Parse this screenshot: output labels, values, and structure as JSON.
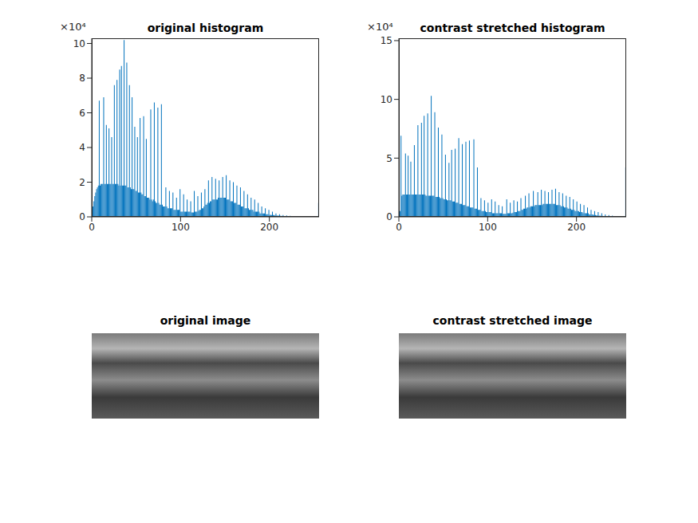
{
  "chart_data": [
    {
      "type": "histogram",
      "title": "original histogram",
      "annotations": [
        "×10⁴"
      ],
      "color": "#0072bd",
      "bins": [
        0,
        1,
        2,
        3,
        4,
        5,
        6,
        7,
        8,
        9,
        10,
        11,
        12,
        13,
        14,
        15,
        16,
        17,
        18,
        19,
        20,
        21,
        22,
        23,
        24,
        25,
        26,
        27,
        28,
        29,
        30,
        31,
        32,
        33,
        34,
        35,
        36,
        37,
        38,
        39,
        40,
        41,
        42,
        43,
        44,
        45,
        46,
        47,
        48,
        49,
        50,
        51,
        52,
        53,
        54,
        55,
        56,
        57,
        58,
        59,
        60,
        61,
        62,
        63,
        64,
        65,
        66,
        67,
        68,
        69,
        70,
        71,
        72,
        73,
        74,
        75,
        76,
        77,
        78,
        79,
        80,
        81,
        82,
        83,
        84,
        85,
        86,
        87,
        88,
        89,
        90,
        91,
        92,
        93,
        94,
        95,
        96,
        97,
        98,
        99,
        100,
        101,
        102,
        103,
        104,
        105,
        106,
        107,
        108,
        109,
        110,
        111,
        112,
        113,
        114,
        115,
        116,
        117,
        118,
        119,
        120,
        121,
        122,
        123,
        124,
        125,
        126,
        127,
        128,
        129,
        130,
        131,
        132,
        133,
        134,
        135,
        136,
        137,
        138,
        139,
        140,
        141,
        142,
        143,
        144,
        145,
        146,
        147,
        148,
        149,
        150,
        151,
        152,
        153,
        154,
        155,
        156,
        157,
        158,
        159,
        160,
        161,
        162,
        163,
        164,
        165,
        166,
        167,
        168,
        169,
        170,
        171,
        172,
        173,
        174,
        175,
        176,
        177,
        178,
        179,
        180,
        181,
        182,
        183,
        184,
        185,
        186,
        187,
        188,
        189,
        190,
        191,
        192,
        193,
        194,
        195,
        196,
        197,
        198,
        199,
        200,
        201,
        202,
        203,
        204,
        205,
        206,
        207,
        208,
        209,
        210,
        211,
        212,
        213,
        214,
        215,
        216,
        217,
        218,
        219,
        220,
        221,
        222,
        223,
        224,
        225,
        226,
        227,
        228,
        229,
        230,
        231,
        232,
        233,
        234,
        235,
        236,
        237,
        238,
        239,
        240,
        241,
        242,
        243,
        244,
        245,
        246,
        247,
        248,
        249,
        250,
        251,
        252,
        253,
        254,
        255,
        256
      ],
      "values": [
        0.3,
        0.6,
        0.9,
        1.2,
        1.4,
        1.6,
        1.7,
        1.8,
        6.7,
        1.8,
        1.9,
        1.9,
        1.9,
        6.9,
        1.9,
        1.9,
        5.3,
        1.9,
        1.9,
        5.1,
        1.9,
        1.9,
        4.6,
        1.9,
        1.9,
        7.6,
        1.9,
        1.9,
        7.9,
        1.9,
        1.8,
        8.5,
        1.8,
        8.7,
        1.8,
        1.8,
        10.2,
        1.8,
        1.8,
        8.9,
        1.7,
        1.7,
        7.6,
        1.7,
        1.6,
        6.9,
        1.6,
        1.6,
        5.2,
        1.5,
        1.5,
        4.6,
        1.4,
        1.4,
        5.7,
        1.4,
        1.3,
        1.3,
        5.8,
        1.2,
        1.2,
        4.5,
        1.1,
        1.1,
        1.1,
        1.0,
        6.2,
        1.0,
        0.9,
        1.0,
        6.6,
        0.9,
        0.8,
        0.8,
        6.3,
        0.8,
        0.7,
        0.7,
        6.5,
        0.7,
        0.6,
        0.6,
        0.6,
        1.7,
        0.6,
        0.5,
        0.5,
        1.5,
        0.5,
        0.5,
        0.5,
        1.4,
        0.4,
        0.4,
        0.4,
        1.1,
        0.4,
        0.4,
        0.4,
        1.6,
        0.3,
        0.3,
        0.3,
        1.3,
        0.3,
        0.3,
        0.3,
        1.0,
        0.3,
        0.3,
        0.3,
        0.9,
        0.25,
        0.25,
        0.25,
        1.5,
        0.3,
        0.3,
        0.3,
        1.2,
        0.35,
        0.4,
        0.4,
        1.4,
        0.5,
        0.5,
        0.6,
        1.6,
        0.7,
        0.7,
        0.8,
        2.1,
        0.8,
        0.9,
        0.9,
        2.3,
        1.0,
        1.0,
        1.0,
        2.2,
        1.0,
        1.0,
        1.1,
        2.1,
        1.1,
        1.1,
        1.1,
        2.3,
        1.1,
        1.1,
        1.1,
        2.4,
        1.0,
        1.0,
        1.0,
        2.1,
        0.9,
        0.9,
        0.9,
        2.0,
        0.8,
        0.8,
        0.8,
        1.8,
        0.7,
        0.7,
        0.7,
        1.7,
        0.6,
        0.6,
        0.6,
        1.5,
        0.5,
        0.5,
        0.5,
        1.3,
        0.5,
        0.4,
        0.4,
        1.1,
        0.4,
        0.4,
        0.3,
        1.0,
        0.3,
        0.3,
        0.3,
        0.8,
        0.3,
        0.2,
        0.2,
        0.6,
        0.2,
        0.2,
        0.2,
        0.5,
        0.15,
        0.15,
        0.15,
        0.4,
        0.12,
        0.12,
        0.1,
        0.3,
        0.1,
        0.1,
        0.08,
        0.2,
        0.08,
        0.07,
        0.07,
        0.15,
        0.06,
        0.06,
        0.05,
        0.1,
        0.05,
        0.05,
        0.04,
        0.08,
        0.04,
        0.04,
        0.03,
        0.06,
        0.03,
        0.03,
        0.03,
        0.05,
        0.03,
        0.02,
        0.02,
        0.04,
        0.02,
        0.02,
        0.02,
        0.03,
        0.02,
        0.02,
        0.02,
        0.02,
        0.02,
        0.02,
        0.02,
        0.02,
        0.02,
        0.02,
        0.02,
        0.02,
        0.02,
        0.02,
        0.02,
        0.02,
        0.02,
        0.02,
        0.03,
        0.8
      ],
      "xlim": [
        0,
        256
      ],
      "xticks": [
        0,
        100,
        200
      ],
      "ylim": [
        0,
        10.3
      ],
      "yticks": [
        0,
        2,
        4,
        6,
        8,
        10
      ]
    },
    {
      "type": "histogram",
      "title": "contrast stretched histogram",
      "annotations": [
        "×10⁴"
      ],
      "color": "#0072bd",
      "bins": [
        0,
        1,
        2,
        3,
        4,
        5,
        6,
        7,
        8,
        9,
        10,
        11,
        12,
        13,
        14,
        15,
        16,
        17,
        18,
        19,
        20,
        21,
        22,
        23,
        24,
        25,
        26,
        27,
        28,
        29,
        30,
        31,
        32,
        33,
        34,
        35,
        36,
        37,
        38,
        39,
        40,
        41,
        42,
        43,
        44,
        45,
        46,
        47,
        48,
        49,
        50,
        51,
        52,
        53,
        54,
        55,
        56,
        57,
        58,
        59,
        60,
        61,
        62,
        63,
        64,
        65,
        66,
        67,
        68,
        69,
        70,
        71,
        72,
        73,
        74,
        75,
        76,
        77,
        78,
        79,
        80,
        81,
        82,
        83,
        84,
        85,
        86,
        87,
        88,
        89,
        90,
        91,
        92,
        93,
        94,
        95,
        96,
        97,
        98,
        99,
        100,
        101,
        102,
        103,
        104,
        105,
        106,
        107,
        108,
        109,
        110,
        111,
        112,
        113,
        114,
        115,
        116,
        117,
        118,
        119,
        120,
        121,
        122,
        123,
        124,
        125,
        126,
        127,
        128,
        129,
        130,
        131,
        132,
        133,
        134,
        135,
        136,
        137,
        138,
        139,
        140,
        141,
        142,
        143,
        144,
        145,
        146,
        147,
        148,
        149,
        150,
        151,
        152,
        153,
        154,
        155,
        156,
        157,
        158,
        159,
        160,
        161,
        162,
        163,
        164,
        165,
        166,
        167,
        168,
        169,
        170,
        171,
        172,
        173,
        174,
        175,
        176,
        177,
        178,
        179,
        180,
        181,
        182,
        183,
        184,
        185,
        186,
        187,
        188,
        189,
        190,
        191,
        192,
        193,
        194,
        195,
        196,
        197,
        198,
        199,
        200,
        201,
        202,
        203,
        204,
        205,
        206,
        207,
        208,
        209,
        210,
        211,
        212,
        213,
        214,
        215,
        216,
        217,
        218,
        219,
        220,
        221,
        222,
        223,
        224,
        225,
        226,
        227,
        228,
        229,
        230,
        231,
        232,
        233,
        234,
        235,
        236,
        237,
        238,
        239,
        240,
        241,
        242,
        243,
        244,
        245,
        246,
        247,
        248,
        249,
        250,
        251,
        252,
        253,
        254,
        255,
        256
      ],
      "values": [
        15.0,
        0.5,
        6.9,
        1.8,
        1.9,
        1.9,
        1.9,
        5.4,
        1.9,
        1.9,
        5.2,
        1.9,
        1.9,
        4.7,
        1.9,
        1.9,
        1.9,
        6.1,
        1.9,
        1.9,
        1.9,
        7.8,
        1.9,
        1.9,
        1.9,
        8.0,
        1.9,
        1.9,
        8.6,
        1.9,
        1.8,
        1.8,
        8.8,
        1.8,
        1.8,
        1.8,
        10.3,
        1.8,
        1.8,
        1.8,
        8.9,
        1.7,
        1.7,
        1.7,
        7.6,
        1.7,
        1.6,
        1.6,
        7.0,
        1.6,
        1.5,
        1.5,
        5.3,
        1.5,
        1.4,
        1.4,
        4.6,
        1.4,
        1.4,
        5.7,
        1.3,
        1.3,
        1.3,
        5.8,
        1.2,
        1.2,
        1.2,
        6.7,
        1.1,
        1.1,
        1.1,
        6.2,
        1.0,
        1.0,
        1.0,
        6.4,
        0.9,
        0.9,
        0.9,
        6.5,
        0.8,
        0.8,
        0.8,
        0.8,
        6.6,
        0.7,
        0.7,
        0.7,
        4.2,
        0.6,
        0.6,
        0.6,
        1.6,
        0.5,
        0.5,
        0.5,
        1.4,
        0.5,
        0.4,
        0.4,
        1.2,
        0.4,
        0.4,
        0.4,
        1.5,
        0.3,
        0.3,
        0.3,
        1.3,
        0.3,
        0.3,
        0.3,
        1.0,
        0.3,
        0.3,
        0.3,
        0.9,
        0.25,
        0.25,
        0.25,
        0.25,
        1.5,
        0.3,
        0.3,
        0.3,
        1.2,
        0.3,
        0.3,
        0.35,
        1.4,
        0.4,
        0.4,
        0.4,
        1.3,
        0.5,
        0.5,
        0.5,
        1.6,
        0.6,
        0.6,
        0.7,
        0.7,
        1.8,
        0.7,
        0.8,
        0.8,
        2.0,
        0.8,
        0.9,
        0.9,
        0.9,
        2.2,
        0.9,
        1.0,
        1.0,
        1.0,
        2.1,
        1.0,
        1.0,
        1.0,
        2.3,
        1.0,
        1.1,
        1.1,
        2.2,
        1.1,
        1.1,
        1.1,
        2.1,
        1.1,
        1.1,
        1.1,
        2.3,
        1.1,
        1.1,
        1.1,
        2.4,
        1.0,
        1.0,
        1.0,
        2.1,
        1.0,
        0.9,
        0.9,
        2.0,
        0.9,
        0.8,
        0.8,
        1.8,
        0.8,
        0.7,
        0.7,
        1.7,
        0.7,
        0.6,
        0.6,
        1.5,
        0.6,
        0.5,
        0.5,
        1.3,
        0.5,
        0.5,
        0.4,
        1.1,
        0.4,
        0.4,
        0.3,
        1.0,
        0.3,
        0.3,
        0.3,
        0.8,
        0.3,
        0.2,
        0.2,
        0.6,
        0.2,
        0.2,
        0.15,
        0.5,
        0.15,
        0.12,
        0.12,
        0.4,
        0.1,
        0.1,
        0.08,
        0.3,
        0.08,
        0.07,
        0.06,
        0.2,
        0.06,
        0.05,
        0.05,
        0.15,
        0.04,
        0.04,
        0.03,
        0.1,
        0.03,
        0.03,
        0.03,
        0.06,
        0.02,
        0.02,
        0.02,
        0.04,
        0.02,
        0.02,
        0.02,
        0.03,
        0.02,
        0.02,
        4.2
      ],
      "xlim": [
        0,
        256
      ],
      "xticks": [
        0,
        100,
        200
      ],
      "ylim": [
        0,
        15.2
      ],
      "yticks": [
        0,
        5,
        10,
        15
      ]
    },
    {
      "type": "image",
      "title": "original image"
    },
    {
      "type": "image",
      "title": "contrast stretched image"
    }
  ]
}
